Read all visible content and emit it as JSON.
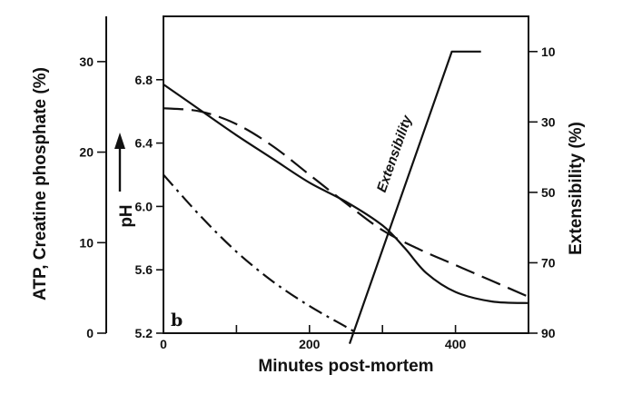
{
  "chart_data": {
    "type": "line",
    "title": "",
    "panel_label": "b",
    "xlabel": "Minutes post-mortem",
    "xlim": [
      0,
      500
    ],
    "x_ticks": [
      0,
      200,
      400
    ],
    "x_minor_ticks": [
      100,
      300
    ],
    "grid": false,
    "axes": {
      "left_outer": {
        "label": "ATP, Creatine phosphate (%)",
        "ticks": [
          0,
          10,
          20,
          30
        ],
        "range": [
          0,
          35
        ]
      },
      "left_inner": {
        "label": "pH",
        "arrow": true,
        "ticks": [
          "5.2",
          "5.6",
          "6.0",
          "6.4",
          "6.8"
        ],
        "range": [
          5.2,
          7.2
        ]
      },
      "right": {
        "label": "Extensibility (%)",
        "ticks": [
          10,
          30,
          50,
          70,
          90
        ],
        "range": [
          90,
          0
        ],
        "inverted": true
      }
    },
    "annotations": [
      {
        "text": "Extensibility"
      }
    ],
    "series": [
      {
        "style": "solid",
        "axis": "left_inner",
        "x": [
          0,
          50,
          100,
          150,
          200,
          250,
          300,
          330,
          360,
          400,
          450,
          500
        ],
        "y": [
          6.77,
          6.61,
          6.45,
          6.3,
          6.15,
          6.03,
          5.88,
          5.74,
          5.58,
          5.46,
          5.4,
          5.39
        ]
      },
      {
        "style": "dashed",
        "axis": "left_inner",
        "x": [
          0,
          50,
          100,
          150,
          200,
          250,
          300,
          350,
          400,
          450,
          500
        ],
        "y": [
          6.62,
          6.6,
          6.52,
          6.38,
          6.2,
          6.02,
          5.85,
          5.73,
          5.63,
          5.53,
          5.43
        ]
      },
      {
        "style": "dash-dot",
        "axis": "left_outer",
        "x": [
          0,
          50,
          100,
          150,
          200,
          250,
          265
        ],
        "y": [
          17.5,
          13.0,
          9.0,
          5.7,
          3.0,
          0.7,
          0.0
        ]
      },
      {
        "style": "solid",
        "axis": "right",
        "x": [
          255,
          395,
          435
        ],
        "y": [
          93,
          10,
          10
        ]
      }
    ]
  }
}
